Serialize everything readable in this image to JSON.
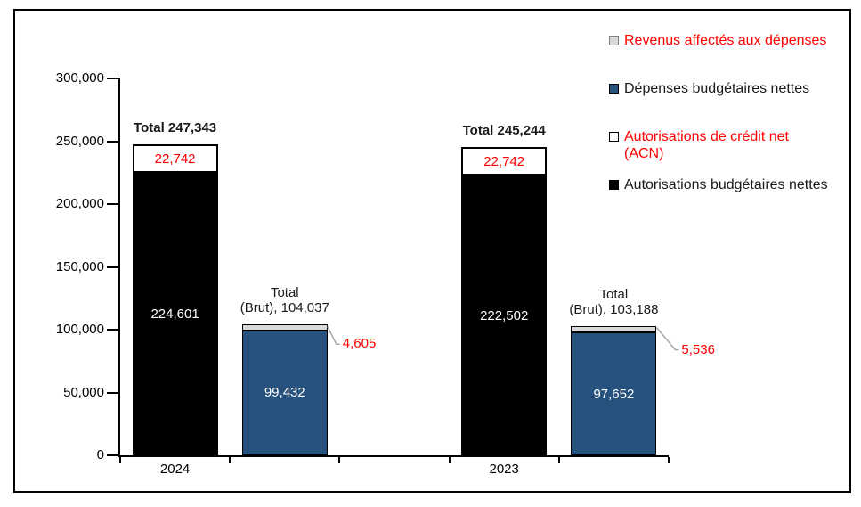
{
  "colors": {
    "accent_blue": "#26527D",
    "segment_gray": "#D9D9D9",
    "segment_white": "#FFFFFF",
    "segment_black": "#000000",
    "red_text": "#FF0000",
    "dark_text": "#1A1A1A",
    "callout_line": "#A6A6A6",
    "axis": "#000000",
    "background": "#FFFFFF"
  },
  "chart_data": {
    "type": "bar",
    "stacked": true,
    "grid": false,
    "legend_position": "top-right",
    "ylim": [
      0,
      300000
    ],
    "ytick_interval": 50000,
    "yticks": [
      "300,000",
      "250,000",
      "200,000",
      "150,000",
      "100,000",
      "50,000",
      "0"
    ],
    "categories": [
      "2024",
      "2023"
    ],
    "groups": [
      {
        "category": "2024",
        "bars": [
          {
            "name": "autorisations-2024",
            "total": 247343,
            "total_lines": [
              "Total 247,343"
            ],
            "total_bold": true,
            "segments": [
              {
                "series": "Autorisations budgétaires nettes",
                "value": 224601,
                "label": "224,601",
                "color": "#000000",
                "label_color": "#FFFFFF"
              },
              {
                "series": "Autorisations de crédit net (ACN)",
                "value": 22742,
                "label": "22,742",
                "color": "#FFFFFF",
                "label_color": "#FF0000"
              }
            ]
          },
          {
            "name": "depenses-2024",
            "total": 104037,
            "total_lines": [
              "Total",
              "(Brut), 104,037"
            ],
            "total_bold": false,
            "segments": [
              {
                "series": "Dépenses budgétaires nettes",
                "value": 99432,
                "label": "99,432",
                "color": "#26527D",
                "label_color": "#FFFFFF"
              },
              {
                "series": "Revenus affectés aux dépenses",
                "value": 4605,
                "label": "4,605",
                "color": "#D9D9D9",
                "label_color": "#FF0000",
                "callout": true
              }
            ]
          }
        ]
      },
      {
        "category": "2023",
        "bars": [
          {
            "name": "autorisations-2023",
            "total": 245244,
            "total_lines": [
              "Total 245,244"
            ],
            "total_bold": true,
            "segments": [
              {
                "series": "Autorisations budgétaires nettes",
                "value": 222502,
                "label": "222,502",
                "color": "#000000",
                "label_color": "#FFFFFF"
              },
              {
                "series": "Autorisations de crédit net (ACN)",
                "value": 22742,
                "label": "22,742",
                "color": "#FFFFFF",
                "label_color": "#FF0000"
              }
            ]
          },
          {
            "name": "depenses-2023",
            "total": 103188,
            "total_lines": [
              "Total",
              "(Brut), 103,188"
            ],
            "total_bold": false,
            "segments": [
              {
                "series": "Dépenses budgétaires nettes",
                "value": 97652,
                "label": "97,652",
                "color": "#26527D",
                "label_color": "#FFFFFF"
              },
              {
                "series": "Revenus affectés aux dépenses",
                "value": 5536,
                "label": "5,536",
                "color": "#D9D9D9",
                "label_color": "#FF0000",
                "callout": true
              }
            ]
          }
        ]
      }
    ],
    "legend": [
      {
        "lines": [
          "Revenus affectés aux dépenses"
        ],
        "color": "#D9D9D9",
        "border": "#808080",
        "text_color": "#FF0000"
      },
      {
        "lines": [
          "Dépenses budgétaires nettes"
        ],
        "color": "#26527D",
        "border": "#000000",
        "text_color": "#1A1A1A"
      },
      {
        "lines": [
          "Autorisations de crédit net",
          "(ACN)"
        ],
        "color": "#FFFFFF",
        "border": "#000000",
        "text_color": "#FF0000"
      },
      {
        "lines": [
          "Autorisations budgétaires nettes"
        ],
        "color": "#000000",
        "border": "#000000",
        "text_color": "#1A1A1A"
      }
    ]
  }
}
